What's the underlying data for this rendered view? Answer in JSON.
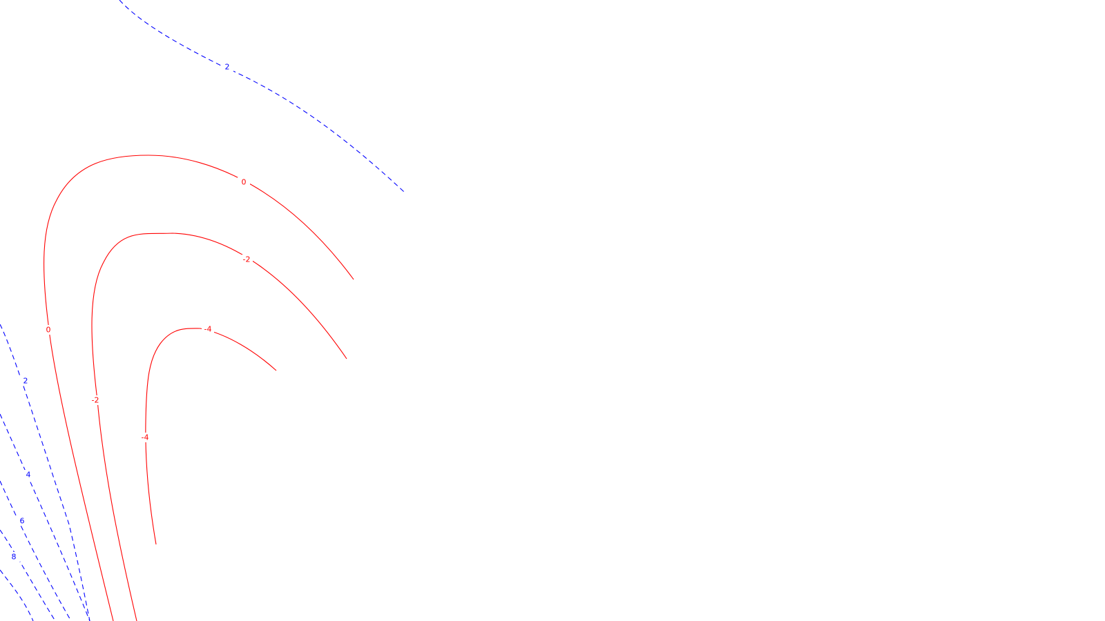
{
  "chart_data": {
    "type": "contour",
    "title": "",
    "xlabel": "",
    "ylabel": "",
    "grid": false,
    "legend": "none",
    "colors": {
      "positive": "#0000ff",
      "negative": "#ff0000",
      "background": "#ffffff"
    },
    "levels": [
      {
        "value": 8,
        "label": "8",
        "sign": "positive",
        "style": "dashed"
      },
      {
        "value": 6,
        "label": "6",
        "sign": "positive",
        "style": "dashed"
      },
      {
        "value": 4,
        "label": "4",
        "sign": "positive",
        "style": "dashed"
      },
      {
        "value": 2,
        "label": "2",
        "sign": "positive",
        "style": "dashed"
      },
      {
        "value": 0,
        "label": "0",
        "sign": "negative",
        "style": "solid"
      },
      {
        "value": -2,
        "label": "-2",
        "sign": "negative",
        "style": "solid"
      },
      {
        "value": -4,
        "label": "-4",
        "sign": "negative",
        "style": "solid"
      }
    ]
  }
}
